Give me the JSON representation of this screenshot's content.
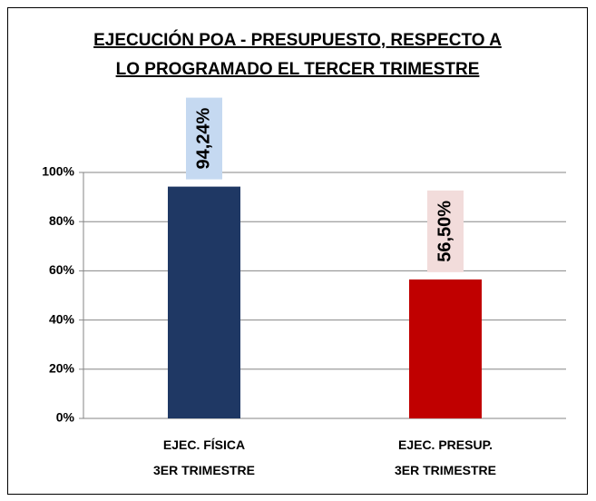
{
  "chart_data": {
    "type": "bar",
    "title": "EJECUCIÓN POA - PRESUPUESTO, RESPECTO A\nLO PROGRAMADO EL TERCER TRIMESTRE",
    "categories": [
      "EJEC. FÍSICA\n3ER TRIMESTRE",
      "EJEC. PRESUP.\n3ER TRIMESTRE"
    ],
    "values": [
      94.24,
      56.5
    ],
    "value_labels": [
      "94,24%",
      "56,50%"
    ],
    "colors": [
      "#1f3864",
      "#c00000"
    ],
    "label_colors": [
      "#c5d9f1",
      "#f2dcdb"
    ],
    "ylim": [
      0,
      100
    ],
    "yticks": [
      {
        "value": 0,
        "label": "0%"
      },
      {
        "value": 20,
        "label": "20%"
      },
      {
        "value": 40,
        "label": "40%"
      },
      {
        "value": 60,
        "label": "60%"
      },
      {
        "value": 80,
        "label": "80%"
      },
      {
        "value": 100,
        "label": "100%"
      }
    ],
    "grid": true
  }
}
